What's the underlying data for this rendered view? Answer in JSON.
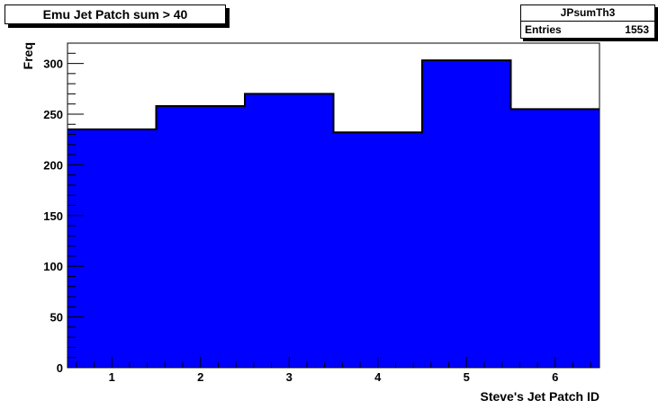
{
  "title_box": {
    "text": "Emu Jet Patch sum > 40"
  },
  "stats_box": {
    "name": "JPsumTh3",
    "entries_label": "Entries",
    "entries_value": "1553"
  },
  "colors": {
    "fill": "#0000ff",
    "line": "#000000",
    "background": "#ffffff"
  },
  "chart_data": {
    "type": "bar",
    "style": "histogram-steps",
    "categories": [
      "1",
      "2",
      "3",
      "4",
      "5",
      "6"
    ],
    "values": [
      235,
      258,
      270,
      232,
      303,
      255
    ],
    "xlabel": "Steve's Jet Patch ID",
    "ylabel": "Freq",
    "xlim": [
      0.5,
      6.5
    ],
    "ylim": [
      0,
      320
    ],
    "x_ticks": [
      1,
      2,
      3,
      4,
      5,
      6
    ],
    "y_ticks": [
      0,
      50,
      100,
      150,
      200,
      250,
      300
    ],
    "grid": false,
    "legend": "none"
  }
}
